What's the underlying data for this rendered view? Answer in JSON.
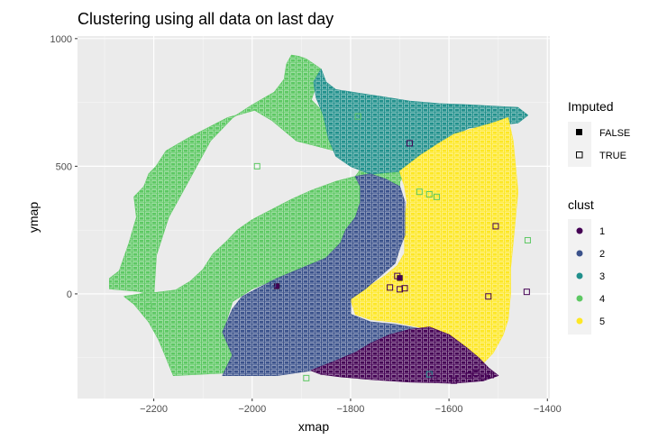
{
  "chart_data": {
    "type": "scatter",
    "title": "Clustering using all data on last day",
    "xlabel": "xmap",
    "ylabel": "ymap",
    "xlim": [
      -2355,
      -1395
    ],
    "ylim": [
      -410,
      1010
    ],
    "x_ticks": [
      -2200,
      -2000,
      -1800,
      -1600,
      -1400
    ],
    "x_tick_labels": [
      "−2200",
      "−2000",
      "−1800",
      "−1600",
      "−1400"
    ],
    "y_ticks": [
      0,
      500,
      1000
    ],
    "y_tick_labels": [
      "0",
      "500",
      "1000"
    ],
    "grid": true,
    "panel_background": "#ebebeb",
    "legends": {
      "shape": {
        "title": "Imputed",
        "entries": [
          {
            "label": "FALSE",
            "shape": "filled-square"
          },
          {
            "label": "TRUE",
            "shape": "open-square"
          }
        ]
      },
      "color": {
        "title": "clust",
        "entries": [
          {
            "label": "1",
            "color": "#440154"
          },
          {
            "label": "2",
            "color": "#3b528b"
          },
          {
            "label": "3",
            "color": "#21908c"
          },
          {
            "label": "4",
            "color": "#5dc863"
          },
          {
            "label": "5",
            "color": "#fde725"
          }
        ]
      }
    },
    "regions": [
      {
        "cluster": "4",
        "color": "#5dc863",
        "points": [
          [
            -1920,
            935
          ],
          [
            -1905,
            930
          ],
          [
            -1890,
            920
          ],
          [
            -1875,
            900
          ],
          [
            -1860,
            880
          ],
          [
            -1860,
            830
          ],
          [
            -1875,
            790
          ],
          [
            -1880,
            760
          ],
          [
            -1860,
            720
          ],
          [
            -1835,
            660
          ],
          [
            -1815,
            610
          ],
          [
            -1790,
            560
          ],
          [
            -1775,
            500
          ],
          [
            -1790,
            460
          ],
          [
            -1830,
            440
          ],
          [
            -1880,
            405
          ],
          [
            -1920,
            370
          ],
          [
            -1960,
            330
          ],
          [
            -2000,
            290
          ],
          [
            -2030,
            250
          ],
          [
            -2055,
            200
          ],
          [
            -2080,
            155
          ],
          [
            -2100,
            95
          ],
          [
            -2125,
            50
          ],
          [
            -2155,
            15
          ],
          [
            -2195,
            5
          ],
          [
            -2225,
            0
          ],
          [
            -2260,
            -10
          ],
          [
            -2240,
            -40
          ],
          [
            -2210,
            -110
          ],
          [
            -2190,
            -180
          ],
          [
            -2175,
            -250
          ],
          [
            -2160,
            -320
          ],
          [
            -2060,
            -310
          ],
          [
            -2040,
            -240
          ],
          [
            -2060,
            -150
          ],
          [
            -2040,
            -30
          ],
          [
            -2000,
            20
          ],
          [
            -1950,
            60
          ],
          [
            -1880,
            100
          ],
          [
            -1830,
            140
          ],
          [
            -1800,
            200
          ],
          [
            -1760,
            250
          ],
          [
            -1730,
            320
          ],
          [
            -1700,
            360
          ],
          [
            -1700,
            440
          ],
          [
            -1680,
            500
          ],
          [
            -1780,
            520
          ],
          [
            -1830,
            560
          ],
          [
            -1910,
            600
          ],
          [
            -1960,
            680
          ],
          [
            -1995,
            720
          ],
          [
            -2050,
            690
          ],
          [
            -2130,
            610
          ],
          [
            -2175,
            560
          ],
          [
            -2195,
            500
          ],
          [
            -2210,
            470
          ],
          [
            -2220,
            420
          ],
          [
            -2240,
            380
          ],
          [
            -2235,
            300
          ],
          [
            -2250,
            200
          ],
          [
            -2270,
            90
          ],
          [
            -2290,
            60
          ],
          [
            -2290,
            20
          ],
          [
            -2230,
            10
          ],
          [
            -2200,
            -5
          ],
          [
            -2195,
            150
          ],
          [
            -2170,
            300
          ],
          [
            -2130,
            440
          ],
          [
            -2085,
            600
          ],
          [
            -2040,
            690
          ],
          [
            -2000,
            740
          ],
          [
            -1955,
            790
          ],
          [
            -1935,
            840
          ],
          [
            -1930,
            900
          ]
        ]
      },
      {
        "cluster": "3",
        "color": "#21908c",
        "points": [
          [
            -1860,
            880
          ],
          [
            -1850,
            830
          ],
          [
            -1830,
            800
          ],
          [
            -1780,
            785
          ],
          [
            -1730,
            770
          ],
          [
            -1680,
            755
          ],
          [
            -1620,
            745
          ],
          [
            -1560,
            740
          ],
          [
            -1510,
            735
          ],
          [
            -1460,
            730
          ],
          [
            -1440,
            700
          ],
          [
            -1460,
            670
          ],
          [
            -1510,
            660
          ],
          [
            -1560,
            650
          ],
          [
            -1590,
            620
          ],
          [
            -1625,
            580
          ],
          [
            -1660,
            540
          ],
          [
            -1700,
            480
          ],
          [
            -1760,
            470
          ],
          [
            -1800,
            500
          ],
          [
            -1830,
            540
          ],
          [
            -1845,
            610
          ],
          [
            -1855,
            700
          ],
          [
            -1870,
            770
          ],
          [
            -1875,
            830
          ]
        ]
      },
      {
        "cluster": "5",
        "color": "#fde725",
        "points": [
          [
            -1700,
            480
          ],
          [
            -1660,
            540
          ],
          [
            -1620,
            590
          ],
          [
            -1590,
            625
          ],
          [
            -1545,
            650
          ],
          [
            -1510,
            670
          ],
          [
            -1480,
            690
          ],
          [
            -1470,
            600
          ],
          [
            -1465,
            500
          ],
          [
            -1460,
            400
          ],
          [
            -1465,
            300
          ],
          [
            -1470,
            200
          ],
          [
            -1475,
            100
          ],
          [
            -1475,
            0
          ],
          [
            -1480,
            -100
          ],
          [
            -1490,
            -160
          ],
          [
            -1510,
            -230
          ],
          [
            -1530,
            -270
          ],
          [
            -1555,
            -300
          ],
          [
            -1580,
            -230
          ],
          [
            -1620,
            -170
          ],
          [
            -1660,
            -130
          ],
          [
            -1710,
            -110
          ],
          [
            -1760,
            -100
          ],
          [
            -1790,
            -80
          ],
          [
            -1800,
            -20
          ],
          [
            -1770,
            20
          ],
          [
            -1730,
            70
          ],
          [
            -1705,
            110
          ],
          [
            -1690,
            160
          ],
          [
            -1690,
            220
          ],
          [
            -1690,
            290
          ],
          [
            -1685,
            360
          ],
          [
            -1690,
            420
          ]
        ]
      },
      {
        "cluster": "2",
        "color": "#3b528b",
        "points": [
          [
            -1790,
            460
          ],
          [
            -1760,
            470
          ],
          [
            -1730,
            450
          ],
          [
            -1700,
            420
          ],
          [
            -1690,
            360
          ],
          [
            -1690,
            290
          ],
          [
            -1690,
            230
          ],
          [
            -1700,
            180
          ],
          [
            -1710,
            120
          ],
          [
            -1740,
            70
          ],
          [
            -1770,
            20
          ],
          [
            -1800,
            -20
          ],
          [
            -1800,
            -80
          ],
          [
            -1760,
            -110
          ],
          [
            -1710,
            -120
          ],
          [
            -1650,
            -140
          ],
          [
            -1720,
            -170
          ],
          [
            -1760,
            -210
          ],
          [
            -1800,
            -240
          ],
          [
            -1840,
            -270
          ],
          [
            -1880,
            -300
          ],
          [
            -1950,
            -320
          ],
          [
            -2060,
            -320
          ],
          [
            -2040,
            -240
          ],
          [
            -2060,
            -150
          ],
          [
            -2040,
            -60
          ],
          [
            -2020,
            -10
          ],
          [
            -1990,
            20
          ],
          [
            -1950,
            60
          ],
          [
            -1900,
            100
          ],
          [
            -1850,
            140
          ],
          [
            -1820,
            200
          ],
          [
            -1810,
            250
          ],
          [
            -1790,
            300
          ],
          [
            -1780,
            360
          ],
          [
            -1780,
            420
          ]
        ]
      },
      {
        "cluster": "1",
        "color": "#440154",
        "points": [
          [
            -1880,
            -300
          ],
          [
            -1840,
            -270
          ],
          [
            -1790,
            -230
          ],
          [
            -1760,
            -195
          ],
          [
            -1720,
            -160
          ],
          [
            -1680,
            -140
          ],
          [
            -1640,
            -130
          ],
          [
            -1600,
            -160
          ],
          [
            -1565,
            -210
          ],
          [
            -1540,
            -250
          ],
          [
            -1520,
            -290
          ],
          [
            -1500,
            -320
          ],
          [
            -1530,
            -340
          ],
          [
            -1590,
            -350
          ],
          [
            -1680,
            -345
          ],
          [
            -1760,
            -335
          ],
          [
            -1820,
            -325
          ],
          [
            -1860,
            -315
          ]
        ]
      }
    ],
    "points": [
      {
        "x": -1950,
        "y": 30,
        "clust": "1",
        "imputed": "FALSE"
      },
      {
        "x": -1958,
        "y": 38,
        "clust": "2",
        "imputed": "TRUE"
      },
      {
        "x": -1700,
        "y": 62,
        "clust": "1",
        "imputed": "FALSE"
      },
      {
        "x": -1705,
        "y": 70,
        "clust": "1",
        "imputed": "TRUE"
      },
      {
        "x": -1720,
        "y": 25,
        "clust": "1",
        "imputed": "TRUE"
      },
      {
        "x": -1700,
        "y": 18,
        "clust": "1",
        "imputed": "TRUE"
      },
      {
        "x": -1690,
        "y": 22,
        "clust": "1",
        "imputed": "TRUE"
      },
      {
        "x": -1680,
        "y": 590,
        "clust": "1",
        "imputed": "TRUE"
      },
      {
        "x": -1505,
        "y": 265,
        "clust": "1",
        "imputed": "TRUE"
      },
      {
        "x": -1520,
        "y": -10,
        "clust": "1",
        "imputed": "TRUE"
      },
      {
        "x": -1442,
        "y": 8,
        "clust": "1",
        "imputed": "TRUE"
      },
      {
        "x": -1440,
        "y": 210,
        "clust": "4",
        "imputed": "TRUE"
      },
      {
        "x": -1990,
        "y": 500,
        "clust": "4",
        "imputed": "TRUE"
      },
      {
        "x": -2210,
        "y": -48,
        "clust": "4",
        "imputed": "TRUE"
      },
      {
        "x": -1785,
        "y": 695,
        "clust": "4",
        "imputed": "TRUE"
      },
      {
        "x": -1640,
        "y": 390,
        "clust": "4",
        "imputed": "TRUE"
      },
      {
        "x": -1625,
        "y": 380,
        "clust": "4",
        "imputed": "TRUE"
      },
      {
        "x": -1660,
        "y": 400,
        "clust": "4",
        "imputed": "TRUE"
      },
      {
        "x": -1640,
        "y": -315,
        "clust": "3",
        "imputed": "TRUE"
      },
      {
        "x": -1560,
        "y": -320,
        "clust": "1",
        "imputed": "TRUE"
      },
      {
        "x": -1545,
        "y": -310,
        "clust": "1",
        "imputed": "TRUE"
      },
      {
        "x": -1530,
        "y": -325,
        "clust": "1",
        "imputed": "TRUE"
      },
      {
        "x": -1515,
        "y": -318,
        "clust": "1",
        "imputed": "TRUE"
      },
      {
        "x": -1630,
        "y": -330,
        "clust": "1",
        "imputed": "TRUE"
      },
      {
        "x": -1590,
        "y": -340,
        "clust": "1",
        "imputed": "TRUE"
      },
      {
        "x": -1890,
        "y": -330,
        "clust": "4",
        "imputed": "TRUE"
      }
    ]
  }
}
